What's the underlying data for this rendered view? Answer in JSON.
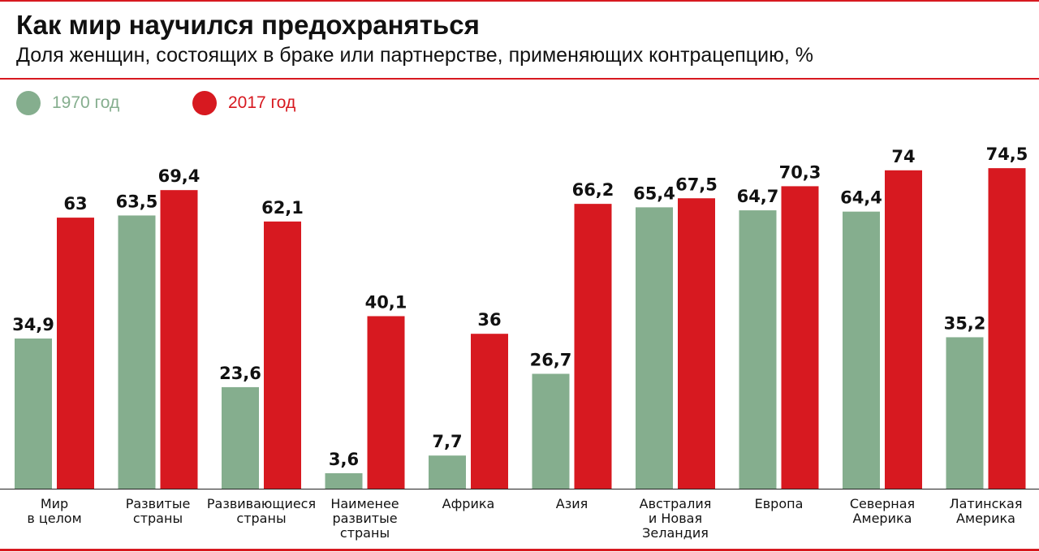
{
  "title": "Как мир научился предохраняться",
  "subtitle": "Доля женщин, состоящих в браке или партнерстве, применяющих контрацепцию, %",
  "colors": {
    "accent": "#d71920",
    "series_1970": "#85ae8e",
    "series_2017": "#d71920"
  },
  "chart_data": {
    "type": "bar",
    "title": "Как мир научился предохраняться",
    "subtitle": "Доля женщин, состоящих в браке или партнерстве, применяющих контрацепцию, %",
    "legend_position": "top-left",
    "grid": false,
    "ylim": [
      0,
      80
    ],
    "categories": [
      [
        "Мир",
        "в целом"
      ],
      [
        "Развитые",
        "страны"
      ],
      [
        "Развивающиеся",
        "страны"
      ],
      [
        "Наименее",
        "развитые",
        "страны"
      ],
      [
        "Африка"
      ],
      [
        "Азия"
      ],
      [
        "Австралия",
        "и Новая",
        "Зеландия"
      ],
      [
        "Европа"
      ],
      [
        "Северная",
        "Америка"
      ],
      [
        "Латинская",
        "Америка"
      ]
    ],
    "series": [
      {
        "name": "1970 год",
        "color": "#85ae8e",
        "values": [
          34.9,
          63.5,
          23.6,
          3.6,
          7.7,
          26.7,
          65.4,
          64.7,
          64.4,
          35.2
        ],
        "labels": [
          "34,9",
          "63,5",
          "23,6",
          "3,6",
          "7,7",
          "26,7",
          "65,4",
          "64,7",
          "64,4",
          "35,2"
        ]
      },
      {
        "name": "2017 год",
        "color": "#d71920",
        "values": [
          63,
          69.4,
          62.1,
          40.1,
          36,
          66.2,
          67.5,
          70.3,
          74,
          74.5
        ],
        "labels": [
          "63",
          "69,4",
          "62,1",
          "40,1",
          "36",
          "66,2",
          "67,5",
          "70,3",
          "74",
          "74,5"
        ]
      }
    ]
  }
}
